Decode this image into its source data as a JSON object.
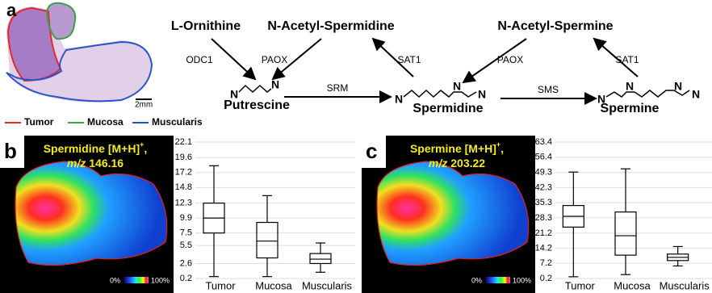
{
  "panel_a": {
    "label": "a",
    "scale_bar": "2mm",
    "legend": [
      {
        "name": "Tumor",
        "color": "#e8262b"
      },
      {
        "name": "Mucosa",
        "color": "#3aa04a"
      },
      {
        "name": "Muscularis",
        "color": "#2a55c8"
      }
    ],
    "precursors": [
      "L-Ornithine",
      "N-Acetyl-Spermidine",
      "N-Acetyl-Spermine"
    ],
    "enzymes": {
      "odc1": "ODC1",
      "paox": "PAOX",
      "sat1": "SAT1",
      "srm": "SRM",
      "sms": "SMS"
    },
    "products": [
      "Putrescine",
      "Spermidine",
      "Spermine"
    ],
    "atom_label": "N"
  },
  "chart_data": [
    {
      "type": "box",
      "panel_label": "b",
      "title_name": "Spermidine [M+H]",
      "title_charge": "+",
      "title_comma": ",",
      "title_mz": "m/z",
      "title_mass": "146.16",
      "colorbar_labels": [
        "0%",
        "100%"
      ],
      "title_color": "#f4ee1a",
      "categories": [
        "Tumor",
        "Mucosa",
        "Muscularis"
      ],
      "whisker_low": [
        0.5,
        0.5,
        1.2
      ],
      "q1": [
        7.5,
        3.5,
        2.6
      ],
      "median": [
        9.9,
        6.2,
        3.3
      ],
      "q3": [
        12.3,
        9.2,
        4.2
      ],
      "whisker_high": [
        18.3,
        13.5,
        5.9
      ],
      "color": "#000000",
      "grid": true,
      "ylim": [
        0.2,
        22.1
      ],
      "yticks": [
        0.2,
        2.6,
        5.5,
        7.5,
        9.9,
        12.3,
        14.8,
        17.2,
        19.6,
        22.1
      ]
    },
    {
      "type": "box",
      "panel_label": "c",
      "title_name": "Spermine [M+H]",
      "title_charge": "+",
      "title_comma": ",",
      "title_mz": "m/z",
      "title_mass": "203.22",
      "colorbar_labels": [
        "0%",
        "100%"
      ],
      "title_color": "#f4ee1a",
      "categories": [
        "Tumor",
        "Mucosa",
        "Muscularis"
      ],
      "whisker_low": [
        1,
        2,
        6
      ],
      "q1": [
        24,
        11,
        8.5
      ],
      "median": [
        29,
        20,
        10
      ],
      "q3": [
        34,
        31,
        11.5
      ],
      "whisker_high": [
        49.5,
        51,
        15
      ],
      "color": "#000000",
      "grid": true,
      "ylim": [
        0.2,
        63.4
      ],
      "yticks": [
        0.2,
        7.2,
        14.2,
        21.2,
        28.3,
        35.3,
        42.3,
        49.3,
        56.4,
        63.4
      ]
    }
  ]
}
